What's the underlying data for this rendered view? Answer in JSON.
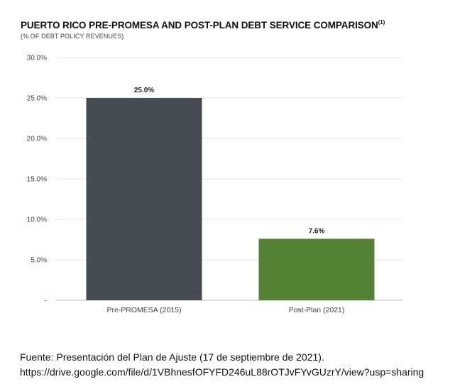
{
  "chart_data": {
    "type": "bar",
    "title": "PUERTO RICO PRE-PROMESA AND POST-PLAN DEBT SERVICE COMPARISON",
    "title_footnote": "(1)",
    "subtitle": "(% OF DEBT POLICY REVENUES)",
    "categories": [
      "Pre-PROMESA (2015)",
      "Post-Plan (2021)"
    ],
    "values": [
      25.0,
      7.6
    ],
    "data_labels": [
      "25.0%",
      "7.6%"
    ],
    "colors": [
      "#464c52",
      "#548235"
    ],
    "ylim": [
      0,
      30
    ],
    "yticks": [
      0,
      5,
      10,
      15,
      20,
      25,
      30
    ],
    "ytick_labels": [
      "-",
      "5.0%",
      "10.0%",
      "15.0%",
      "20.0%",
      "25.0%",
      "30.0%"
    ],
    "grid": true,
    "legend": "none",
    "xlabel": "",
    "ylabel": ""
  },
  "footer": {
    "source": "Fuente: Presentación del Plan de Ajuste (17 de septiembre de 2021).",
    "url": "https://drive.google.com/file/d/1VBhnesfOFYFD246uL88rOTJvFYvGUzrY/view?usp=sharing"
  }
}
